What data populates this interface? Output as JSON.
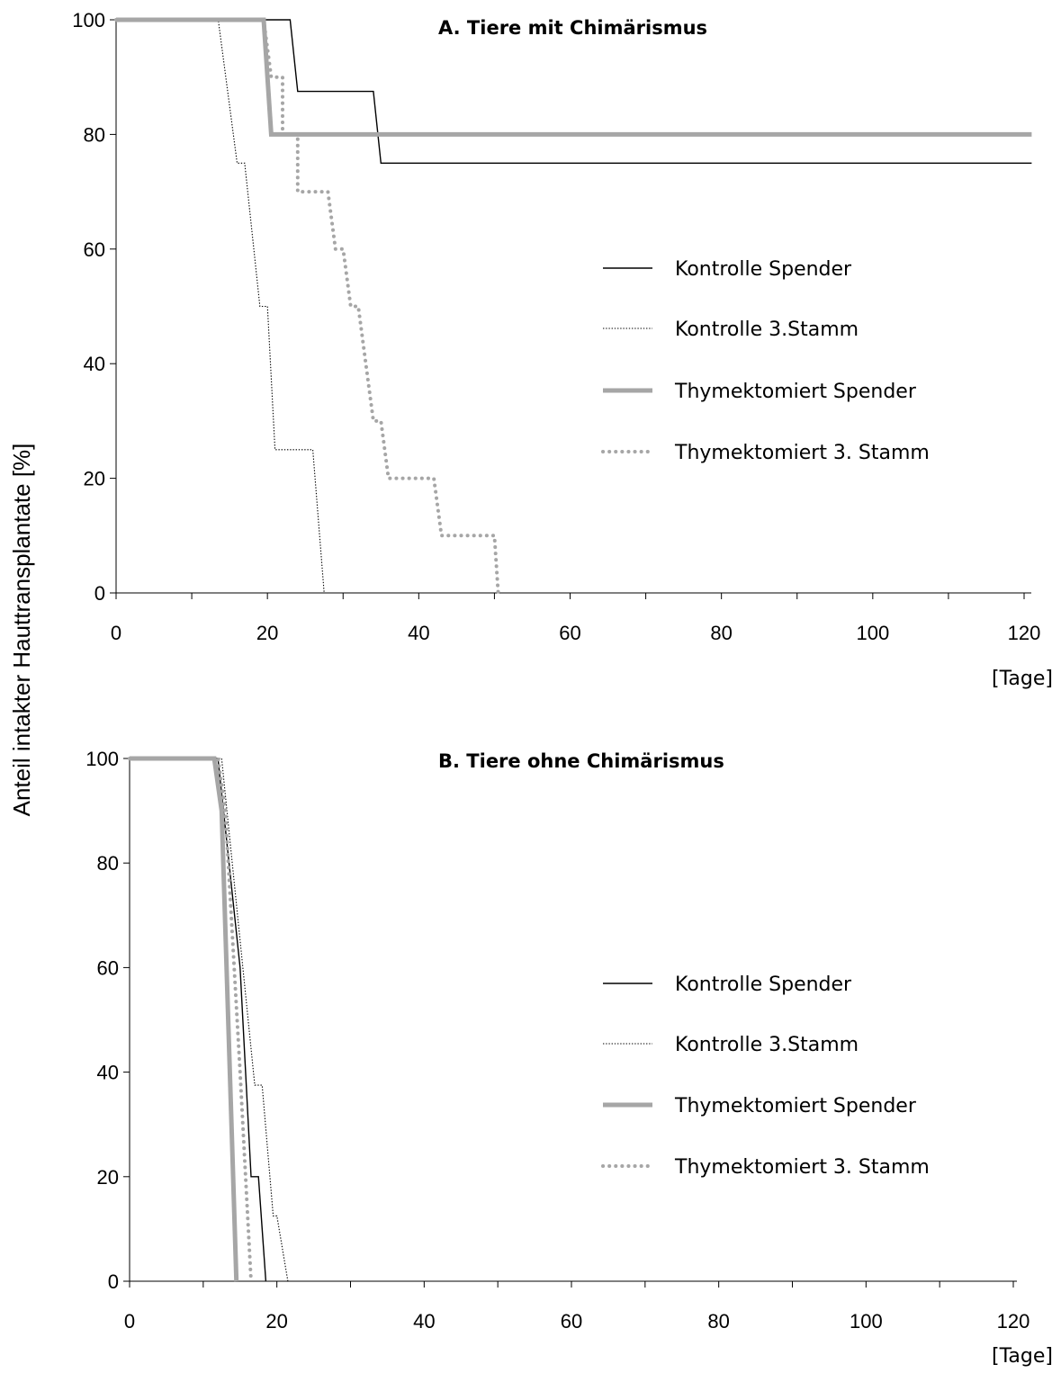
{
  "y_axis_label": "Anteil intakter Hauttransplantate [%]",
  "chart_data": [
    {
      "type": "line",
      "step": true,
      "title": "A. Tiere mit Chimärismus",
      "xlabel": "[Tage]",
      "ylabel": "Anteil intakter Hauttransplantate [%]",
      "xlim": [
        0,
        120
      ],
      "ylim": [
        0,
        100
      ],
      "xticks": [
        0,
        20,
        40,
        60,
        80,
        100,
        120
      ],
      "yticks": [
        0,
        20,
        40,
        60,
        80,
        100
      ],
      "grid": false,
      "legend_position": "right",
      "series": [
        {
          "name": "Kontrolle Spender",
          "style": "solid-thin",
          "color": "#000000",
          "x": [
            0,
            23,
            23,
            24,
            24,
            34,
            34,
            35,
            35,
            121
          ],
          "y": [
            100,
            100,
            100,
            87.5,
            87.5,
            87.5,
            87.5,
            75,
            75,
            75
          ]
        },
        {
          "name": "Kontrolle 3.Stamm",
          "style": "dotted-thin",
          "color": "#000000",
          "x": [
            0,
            13.5,
            16,
            16,
            17,
            19,
            19,
            20,
            21,
            21,
            26,
            26,
            27.5
          ],
          "y": [
            100,
            100,
            75,
            75,
            75,
            50,
            50,
            50,
            25,
            25,
            25,
            25,
            0
          ]
        },
        {
          "name": "Thymektomiert Spender",
          "style": "solid-thick",
          "color": "#a6a6a6",
          "x": [
            0,
            19.5,
            20.5,
            121
          ],
          "y": [
            100,
            100,
            80,
            80
          ]
        },
        {
          "name": "Thymektomiert 3. Stamm",
          "style": "dotted-thick",
          "color": "#a6a6a6",
          "x": [
            0,
            19.5,
            20.5,
            22,
            22,
            24,
            24,
            28,
            29,
            30,
            30,
            31,
            32,
            33,
            34,
            35,
            36,
            36,
            42,
            43,
            43,
            50,
            50.5
          ],
          "y": [
            100,
            100,
            90,
            90,
            80,
            80,
            70,
            70,
            60,
            60,
            60,
            50,
            50,
            40,
            30,
            30,
            20,
            20,
            20,
            10,
            10,
            10,
            0
          ]
        }
      ]
    },
    {
      "type": "line",
      "step": true,
      "title": "B. Tiere ohne Chimärismus",
      "xlabel": "[Tage]",
      "ylabel": "Anteil intakter Hauttransplantate [%]",
      "xlim": [
        0,
        120
      ],
      "ylim": [
        0,
        100
      ],
      "xticks": [
        0,
        20,
        40,
        60,
        80,
        100,
        120
      ],
      "yticks": [
        0,
        20,
        40,
        60,
        80,
        100
      ],
      "grid": false,
      "legend_position": "right",
      "series": [
        {
          "name": "Kontrolle Spender",
          "style": "solid-thin",
          "color": "#000000",
          "x": [
            0,
            12,
            15,
            16.5,
            17.5,
            17.5,
            18.5
          ],
          "y": [
            100,
            100,
            60,
            20,
            20,
            20,
            0
          ]
        },
        {
          "name": "Kontrolle 3.Stamm",
          "style": "dotted-thin",
          "color": "#000000",
          "x": [
            0,
            12.5,
            17,
            17,
            18,
            19.5,
            20,
            21.5
          ],
          "y": [
            100,
            100,
            37.5,
            37.5,
            37.5,
            12.5,
            12.5,
            0
          ]
        },
        {
          "name": "Thymektomiert Spender",
          "style": "solid-thick",
          "color": "#a6a6a6",
          "x": [
            0,
            11.5,
            12.5,
            14.5
          ],
          "y": [
            100,
            100,
            90,
            0
          ]
        },
        {
          "name": "Thymektomiert 3. Stamm",
          "style": "dotted-thick",
          "color": "#a6a6a6",
          "x": [
            0,
            12,
            13,
            15,
            16.5
          ],
          "y": [
            100,
            100,
            90,
            40,
            0
          ]
        }
      ]
    }
  ]
}
